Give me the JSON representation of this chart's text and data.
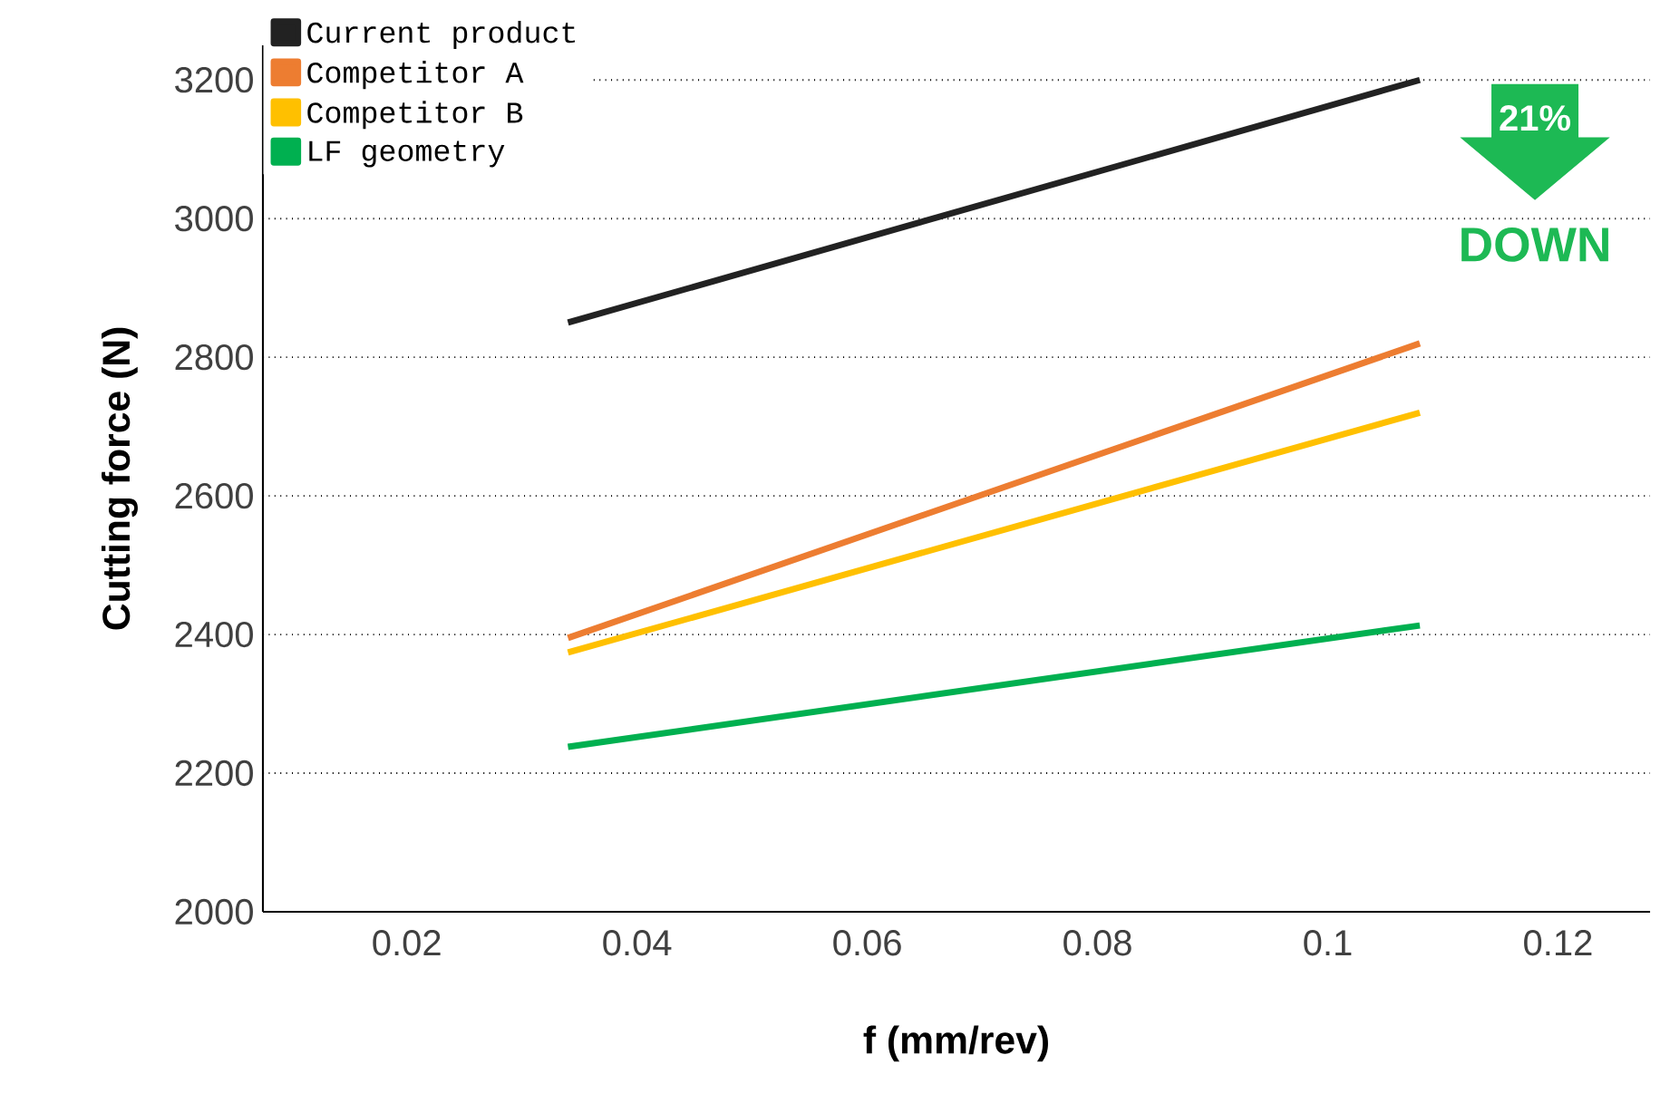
{
  "chart_data": {
    "type": "line",
    "xlabel": "f (mm/rev)",
    "ylabel": "Cutting force (N)",
    "xlim": [
      0.0075,
      0.128
    ],
    "xticks": [
      0.02,
      0.04,
      0.06,
      0.08,
      {
        "value": 0.1,
        "label": "0.1"
      },
      0.12
    ],
    "ylim": [
      2000,
      3250
    ],
    "yticks": [
      2000,
      2200,
      2400,
      2600,
      2800,
      3000,
      3200
    ],
    "grid": "y",
    "legend": "top left",
    "marker": "none",
    "line_style": "solid",
    "x": [
      0.034,
      0.108
    ],
    "series": [
      {
        "name": "Current product",
        "color": "#222222",
        "values": [
          2850,
          3200
        ]
      },
      {
        "name": "Competitor A",
        "color": "#ed7d31",
        "values": [
          2395,
          2820
        ]
      },
      {
        "name": "Competitor B",
        "color": "#ffc000",
        "values": [
          2374,
          2720
        ]
      },
      {
        "name": "LF geometry",
        "color": "#00b050",
        "values": [
          2238,
          2413
        ]
      }
    ],
    "annotations": [
      "21%",
      "DOWN"
    ]
  }
}
